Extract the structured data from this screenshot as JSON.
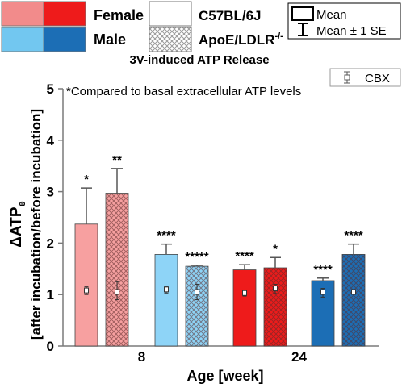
{
  "legend": {
    "female_label": "Female",
    "male_label": "Male",
    "strain_solid_label": "C57BL/6J",
    "strain_hatched_label": "ApoE/LDLR",
    "strain_hatched_superscript": "-/-",
    "mean_label": "Mean",
    "se_label": "Mean ± 1 SE",
    "cbx_label": "CBX"
  },
  "colors": {
    "female_light": "#F28B8B",
    "female_dark": "#EE1B1B",
    "male_light": "#72C7F0",
    "male_dark": "#1C6EB5",
    "female_light_bar": "#F7A0A0",
    "male_light_bar": "#8ED4F7"
  },
  "chart_data": {
    "type": "bar",
    "title": "3V-induced ATP Release",
    "annotation": "*Compared to basal extracellular ATP levels",
    "ylabel_main": "ΔATP",
    "ylabel_sub": "e",
    "ylabel_line2": "[after incubation/before incubation]",
    "xlabel": "Age [week]",
    "ylim": [
      0,
      5
    ],
    "yticks": [
      "0",
      "1",
      "2",
      "3",
      "4",
      "5"
    ],
    "categories": [
      "8",
      "24"
    ],
    "bars": [
      {
        "group": "8",
        "sex": "Female",
        "strain": "C57BL/6J",
        "color": "#F7A0A0",
        "hatched": false,
        "value": 2.37,
        "se": 0.7,
        "sig": "*",
        "cbx_low": 1.0,
        "cbx_mid": 1.08,
        "cbx_high": 1.15
      },
      {
        "group": "8",
        "sex": "Female",
        "strain": "ApoE/LDLR",
        "color": "#F7A0A0",
        "hatched": true,
        "value": 2.97,
        "se": 0.48,
        "sig": "**",
        "cbx_low": 0.9,
        "cbx_mid": 1.05,
        "cbx_high": 1.25
      },
      {
        "group": "8",
        "sex": "Male",
        "strain": "C57BL/6J",
        "color": "#8ED4F7",
        "hatched": false,
        "value": 1.78,
        "se": 0.2,
        "sig": "****",
        "cbx_low": 1.03,
        "cbx_mid": 1.1,
        "cbx_high": 1.15
      },
      {
        "group": "8",
        "sex": "Male",
        "strain": "ApoE/LDLR",
        "color": "#8ED4F7",
        "hatched": true,
        "value": 1.55,
        "se": 0.02,
        "sig": "*****",
        "cbx_low": 0.9,
        "cbx_mid": 1.05,
        "cbx_high": 1.2
      },
      {
        "group": "24",
        "sex": "Female",
        "strain": "C57BL/6J",
        "color": "#EE1B1B",
        "hatched": false,
        "value": 1.48,
        "se": 0.1,
        "sig": "****",
        "cbx_low": 0.97,
        "cbx_mid": 1.03,
        "cbx_high": 1.08
      },
      {
        "group": "24",
        "sex": "Female",
        "strain": "ApoE/LDLR",
        "color": "#EE1B1B",
        "hatched": true,
        "value": 1.52,
        "se": 0.2,
        "sig": "*",
        "cbx_low": 1.02,
        "cbx_mid": 1.12,
        "cbx_high": 1.2
      },
      {
        "group": "24",
        "sex": "Male",
        "strain": "C57BL/6J",
        "color": "#1C6EB5",
        "hatched": false,
        "value": 1.27,
        "se": 0.05,
        "sig": "****",
        "cbx_low": 0.95,
        "cbx_mid": 1.05,
        "cbx_high": 1.12
      },
      {
        "group": "24",
        "sex": "Male",
        "strain": "ApoE/LDLR",
        "color": "#1C6EB5",
        "hatched": true,
        "value": 1.78,
        "se": 0.2,
        "sig": "****",
        "cbx_low": 1.03,
        "cbx_mid": 1.05,
        "cbx_high": 1.07
      }
    ],
    "grid": false
  }
}
